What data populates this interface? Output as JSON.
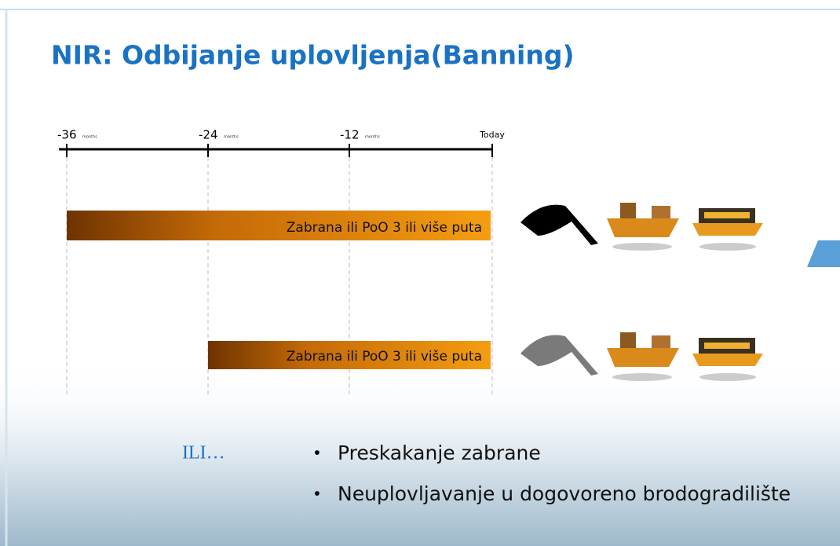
{
  "title": "NIR: Odbijanje uplovljenja(Banning)",
  "timeline": {
    "ticks": [
      {
        "label": "-36",
        "unit": "months"
      },
      {
        "label": "-24",
        "unit": "months"
      },
      {
        "label": "-12",
        "unit": "months"
      },
      {
        "label": "Today"
      }
    ]
  },
  "bars": [
    {
      "label": "Zabrana ili PoO 3 ili više puta"
    },
    {
      "label": "Zabrana ili PoO 3 ili više puta"
    }
  ],
  "ili": "ILI…",
  "bullets": [
    "Preskakanje zabrane",
    "Neuplovljavanje u dogovoreno brodogradilište"
  ]
}
